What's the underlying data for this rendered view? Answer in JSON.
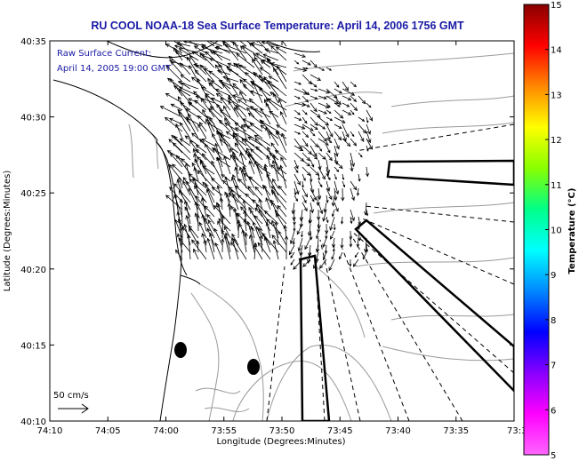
{
  "title": "RU COOL  NOAA-18  Sea Surface Temperature:  April 14, 2006 1756 GMT",
  "legend": {
    "line1": "Raw Surface Current:",
    "line2": "April 14, 2005 19:00 GMT"
  },
  "scale": {
    "label": "50 cm/s"
  },
  "axes": {
    "xlabel": "Longitude (Degrees:Minutes)",
    "ylabel": "Latitude (Degrees:Minutes)",
    "xticks": [
      "74:10",
      "74:05",
      "74:00",
      "73:55",
      "73:50",
      "73:45",
      "73:40",
      "73:35",
      "73:3"
    ],
    "yticks": [
      "40:35",
      "40:30",
      "40:25",
      "40:20",
      "40:15",
      "40:10"
    ]
  },
  "colorbar": {
    "label": "Temperature (°C)",
    "ticks": [
      "15",
      "14",
      "13",
      "12",
      "11",
      "10",
      "9",
      "8",
      "7",
      "6",
      "5"
    ],
    "stops": [
      "#880000",
      "#ff0000",
      "#ff8800",
      "#ffff00",
      "#88ff00",
      "#00ff88",
      "#00ffff",
      "#0088ff",
      "#0000ff",
      "#8800ff",
      "#ff00ff",
      "#ff66ff"
    ]
  },
  "colors": {
    "title": "#1a1aa6",
    "coast": "#000000",
    "bathymetry": "#999999"
  }
}
